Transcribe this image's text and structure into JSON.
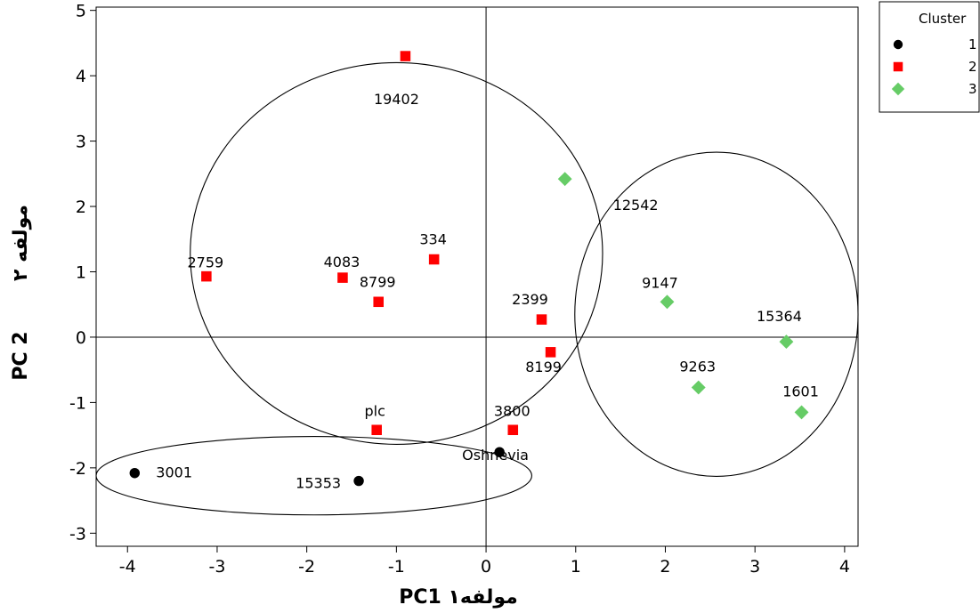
{
  "chart_data": {
    "type": "scatter",
    "title": "",
    "xlabel": "PC1 مولفه١",
    "ylabel": "PC 2",
    "ylabel_secondary": "مولفه ٢",
    "xlim": [
      -4.35,
      4.15
    ],
    "ylim": [
      -3.2,
      5.05
    ],
    "xticks": [
      -4,
      -3,
      -2,
      -1,
      0,
      1,
      2,
      3,
      4
    ],
    "yticks": [
      -3,
      -2,
      -1,
      0,
      1,
      2,
      3,
      4,
      5
    ],
    "reference_lines": {
      "x": 0,
      "y": 0
    },
    "grid": false,
    "legend": {
      "title": "Cluster",
      "placement": "outside-top-right",
      "entries": [
        {
          "label": "1",
          "marker": "circle",
          "color": "#000000"
        },
        {
          "label": "2",
          "marker": "square",
          "color": "#ff0000"
        },
        {
          "label": "3",
          "marker": "diamond",
          "color": "#66cc66"
        }
      ]
    },
    "series": [
      {
        "name": "1",
        "marker": "circle",
        "color": "#000000",
        "points": [
          {
            "x": -3.92,
            "y": -2.08,
            "label": "3001"
          },
          {
            "x": -1.42,
            "y": -2.2,
            "label": "15353"
          },
          {
            "x": 0.15,
            "y": -1.76,
            "label": "Oshnevia"
          }
        ]
      },
      {
        "name": "2",
        "marker": "square",
        "color": "#ff0000",
        "points": [
          {
            "x": -0.9,
            "y": 4.3,
            "label": "19402"
          },
          {
            "x": -3.12,
            "y": 0.93,
            "label": "2759"
          },
          {
            "x": -1.6,
            "y": 0.91,
            "label": "4083"
          },
          {
            "x": -1.2,
            "y": 0.54,
            "label": "8799"
          },
          {
            "x": -0.58,
            "y": 1.19,
            "label": "334"
          },
          {
            "x": 0.62,
            "y": 0.27,
            "label": "2399"
          },
          {
            "x": 0.72,
            "y": -0.23,
            "label": "8199"
          },
          {
            "x": -1.22,
            "y": -1.42,
            "label": "plc"
          },
          {
            "x": 0.3,
            "y": -1.42,
            "label": "3800"
          }
        ]
      },
      {
        "name": "3",
        "marker": "diamond",
        "color": "#66cc66",
        "points": [
          {
            "x": 0.88,
            "y": 2.42,
            "label": "12542"
          },
          {
            "x": 2.02,
            "y": 0.54,
            "label": "9147"
          },
          {
            "x": 3.35,
            "y": -0.07,
            "label": "15364"
          },
          {
            "x": 2.37,
            "y": -0.77,
            "label": "9263"
          },
          {
            "x": 3.52,
            "y": -1.15,
            "label": "1601"
          }
        ]
      }
    ],
    "annotations": [
      {
        "shape": "ellipse",
        "cx": -1.0,
        "cy": 1.28,
        "rx": 2.3,
        "ry": 2.92
      },
      {
        "shape": "ellipse",
        "cx": 2.57,
        "cy": 0.35,
        "rx": 1.58,
        "ry": 2.48
      },
      {
        "shape": "ellipse",
        "cx": -1.92,
        "cy": -2.12,
        "rx": 2.43,
        "ry": 0.6
      }
    ]
  }
}
